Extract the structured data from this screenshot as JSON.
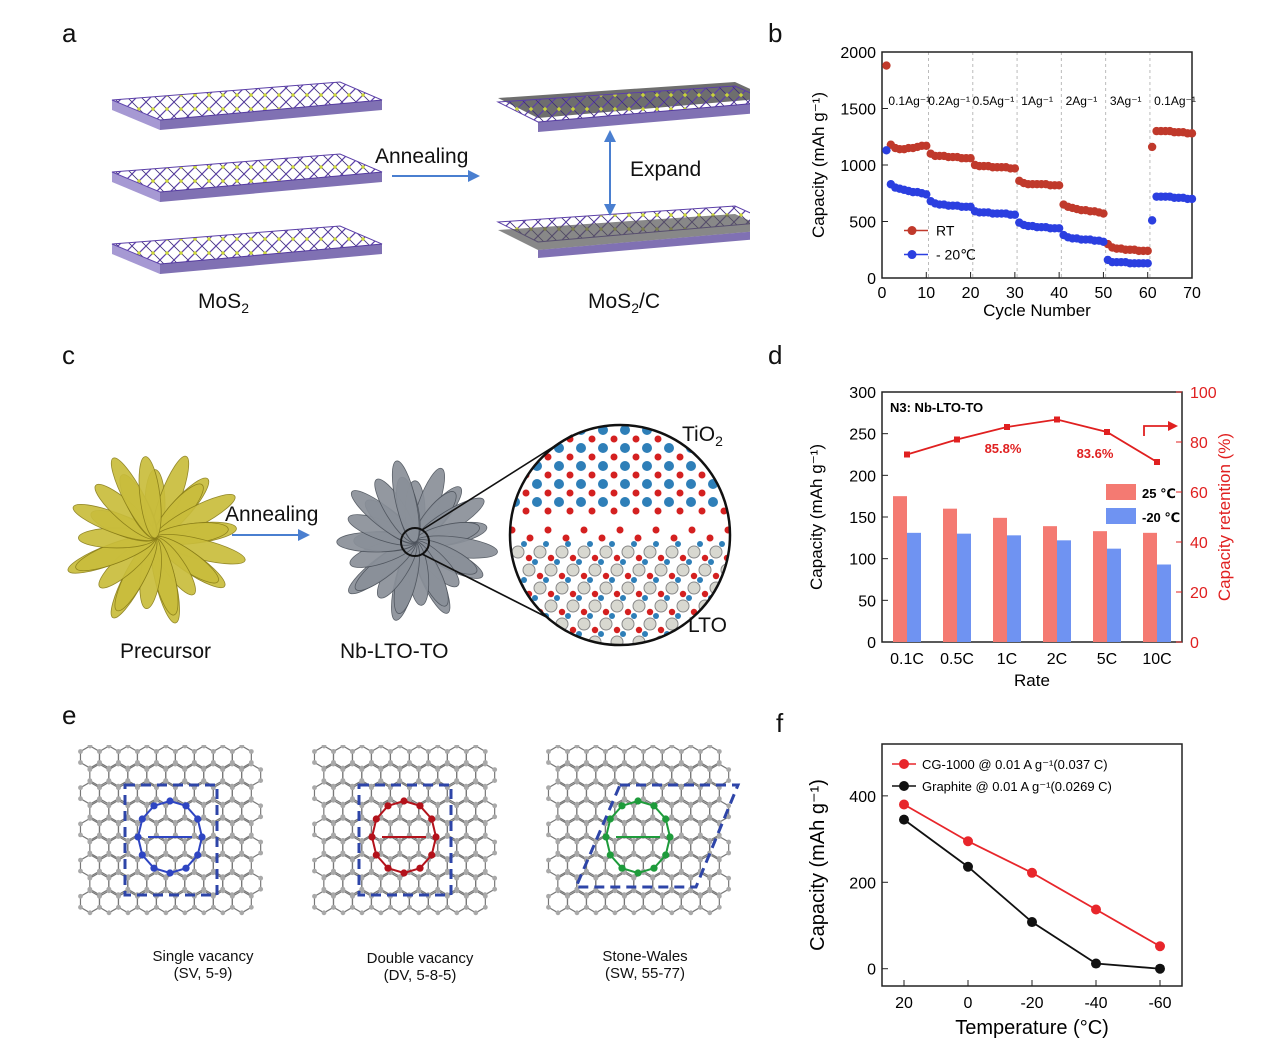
{
  "panels": {
    "a": {
      "letter": "a",
      "annealing": "Annealing",
      "expand": "Expand",
      "left_caption": "MoS",
      "left_caption_sub": "2",
      "right_caption_pre": "MoS",
      "right_caption_sub": "2",
      "right_caption_post": "/C"
    },
    "b": {
      "letter": "b"
    },
    "c": {
      "letter": "c",
      "annealing": "Annealing",
      "precursor": "Precursor",
      "product": "Nb-LTO-TO",
      "tio2": "TiO",
      "tio2_sub": "2",
      "lto": "LTO"
    },
    "d": {
      "letter": "d"
    },
    "e": {
      "letter": "e",
      "items": [
        {
          "name": "Single vacancy",
          "code": "(SV, 5-9)"
        },
        {
          "name": "Double vacancy",
          "code": "(DV, 5-8-5)"
        },
        {
          "name": "Stone-Wales",
          "code": "(SW, 55-77)"
        }
      ]
    },
    "f": {
      "letter": "f"
    }
  },
  "colors": {
    "red": "#c0392b",
    "blue": "#2b3fe0",
    "bar_red": "#f47a72",
    "bar_blue": "#6f93f2",
    "sulfur": "#c8d23a",
    "moly": "#5b3fa8",
    "grey_atom": "#a9a9a9",
    "defect_blue": "#2e45c2",
    "defect_red": "#b3121b",
    "defect_green": "#1e9b3b",
    "flower_yellow": "#c9bd3c",
    "flower_grey": "#8a9099"
  },
  "chart_data": [
    {
      "type": "scatter",
      "panel": "b",
      "xlabel": "Cycle Number",
      "ylabel": "Capacity (mAh g⁻¹)",
      "xlim": [
        0,
        70
      ],
      "ylim": [
        0,
        2000
      ],
      "xticks": [
        "0",
        "10",
        "20",
        "30",
        "40",
        "50",
        "60",
        "70"
      ],
      "yticks": [
        "0",
        "500",
        "1000",
        "1500",
        "2000"
      ],
      "rate_labels": [
        "0.1Ag⁻¹",
        "0.2Ag⁻¹",
        "0.5Ag⁻¹",
        "1Ag⁻¹",
        "2Ag⁻¹",
        "3Ag⁻¹",
        "0.1Ag⁻¹"
      ],
      "rate_label_x": [
        1,
        10,
        20,
        31,
        41,
        51,
        61
      ],
      "legend_position": "lower-left",
      "series": [
        {
          "name": "RT",
          "color": "#c0392b",
          "x": [
            1,
            2,
            3,
            4,
            5,
            6,
            7,
            8,
            9,
            10,
            11,
            12,
            13,
            14,
            15,
            16,
            17,
            18,
            19,
            20,
            21,
            22,
            23,
            24,
            25,
            26,
            27,
            28,
            29,
            30,
            31,
            32,
            33,
            34,
            35,
            36,
            37,
            38,
            39,
            40,
            41,
            42,
            43,
            44,
            45,
            46,
            47,
            48,
            49,
            50,
            51,
            52,
            53,
            54,
            55,
            56,
            57,
            58,
            59,
            60,
            61,
            62,
            63,
            64,
            65,
            66,
            67,
            68,
            69,
            70
          ],
          "y": [
            1880,
            1180,
            1150,
            1140,
            1140,
            1150,
            1150,
            1160,
            1170,
            1170,
            1100,
            1080,
            1080,
            1080,
            1070,
            1070,
            1070,
            1060,
            1060,
            1060,
            1000,
            990,
            990,
            990,
            980,
            980,
            980,
            980,
            970,
            970,
            860,
            840,
            830,
            830,
            830,
            830,
            830,
            820,
            820,
            820,
            650,
            630,
            620,
            610,
            600,
            600,
            590,
            590,
            580,
            570,
            300,
            270,
            260,
            260,
            250,
            250,
            250,
            240,
            240,
            240,
            1160,
            1300,
            1300,
            1300,
            1300,
            1290,
            1290,
            1290,
            1280,
            1280
          ]
        },
        {
          "name": "- 20℃",
          "color": "#2b3fe0",
          "x": [
            1,
            2,
            3,
            4,
            5,
            6,
            7,
            8,
            9,
            10,
            11,
            12,
            13,
            14,
            15,
            16,
            17,
            18,
            19,
            20,
            21,
            22,
            23,
            24,
            25,
            26,
            27,
            28,
            29,
            30,
            31,
            32,
            33,
            34,
            35,
            36,
            37,
            38,
            39,
            40,
            41,
            42,
            43,
            44,
            45,
            46,
            47,
            48,
            49,
            50,
            51,
            52,
            53,
            54,
            55,
            56,
            57,
            58,
            59,
            60,
            61,
            62,
            63,
            64,
            65,
            66,
            67,
            68,
            69,
            70
          ],
          "y": [
            1130,
            830,
            800,
            790,
            780,
            770,
            760,
            760,
            750,
            740,
            680,
            660,
            650,
            650,
            640,
            640,
            640,
            630,
            630,
            630,
            590,
            580,
            580,
            580,
            570,
            570,
            570,
            570,
            560,
            560,
            490,
            470,
            460,
            460,
            450,
            450,
            450,
            440,
            440,
            440,
            380,
            360,
            350,
            350,
            340,
            340,
            340,
            330,
            330,
            320,
            160,
            140,
            140,
            140,
            140,
            130,
            130,
            130,
            130,
            130,
            510,
            720,
            720,
            720,
            720,
            710,
            710,
            710,
            700,
            700
          ]
        }
      ]
    },
    {
      "type": "bar",
      "panel": "d",
      "annotation": "N3: Nb-LTO-TO",
      "categories": [
        "0.1C",
        "0.5C",
        "1C",
        "2C",
        "5C",
        "10C"
      ],
      "xlabel": "Rate",
      "ylabel": "Capacity (mAh g⁻¹)",
      "y2label": "Capacity retention (%)",
      "ylim": [
        0,
        300
      ],
      "y2lim": [
        0,
        100
      ],
      "yticks": [
        "0",
        "50",
        "100",
        "150",
        "200",
        "250",
        "300"
      ],
      "y2ticks": [
        "0",
        "20",
        "40",
        "60",
        "80",
        "100"
      ],
      "series": [
        {
          "name": "25 ℃",
          "color": "#f47a72",
          "values": [
            175,
            160,
            149,
            139,
            133,
            131
          ]
        },
        {
          "name": "-20 ℃",
          "color": "#6f93f2",
          "values": [
            131,
            130,
            128,
            122,
            112,
            93
          ]
        }
      ],
      "retention": {
        "color": "#e02020",
        "values": [
          75,
          81,
          86,
          89,
          84,
          72
        ]
      },
      "retention_labels": [
        "85.8%",
        "83.6%"
      ],
      "legend_position": "right"
    },
    {
      "type": "line",
      "panel": "f",
      "xlabel": "Temperature (°C)",
      "ylabel": "Capacity (mAh g⁻¹)",
      "x": [
        20,
        0,
        -20,
        -40,
        -60
      ],
      "xticks": [
        "20",
        "0",
        "-20",
        "-40",
        "-60"
      ],
      "ylim": [
        -40,
        520
      ],
      "yticks": [
        "0",
        "200",
        "400"
      ],
      "legend_position": "top-left",
      "series": [
        {
          "name": "CG-1000 @ 0.01 A g⁻¹(0.037 C)",
          "color": "#e8262b",
          "values": [
            380,
            295,
            222,
            137,
            52
          ]
        },
        {
          "name": "Graphite @ 0.01 A g⁻¹(0.0269 C)",
          "color": "#111111",
          "values": [
            345,
            236,
            108,
            12,
            0
          ]
        }
      ]
    }
  ]
}
